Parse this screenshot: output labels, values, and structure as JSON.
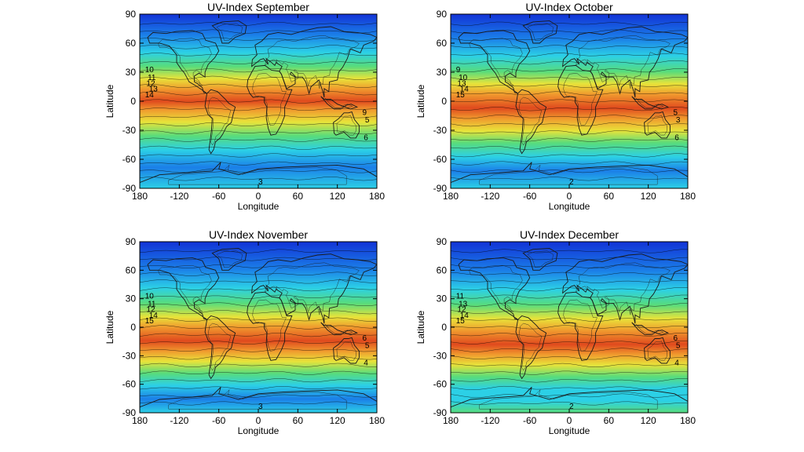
{
  "figure": {
    "title_prefix": "UV-Index",
    "xlabel": "Longitude",
    "ylabel": "Latitude",
    "x_ticks": [
      "180",
      "-120",
      "-60",
      "0",
      "60",
      "120",
      "180"
    ],
    "y_ticks": [
      "90",
      "60",
      "30",
      "0",
      "-30",
      "-60",
      "-90"
    ],
    "colors": {
      "blue_dark": "#1233d6",
      "blue": "#1b7fe8",
      "cyan": "#2cd0e6",
      "green": "#58dc7c",
      "yellow": "#e8e33a",
      "orange": "#f09a2e",
      "red": "#e04a1e",
      "land_line": "#1a1a1a"
    }
  },
  "panels": [
    {
      "month": "September",
      "contour_labels": [
        "12",
        "13",
        "14",
        "11",
        "10",
        "9",
        "5",
        "6",
        "3"
      ]
    },
    {
      "month": "October",
      "contour_labels": [
        "13",
        "14",
        "15",
        "10",
        "9",
        "5",
        "3",
        "6",
        "2"
      ]
    },
    {
      "month": "November",
      "contour_labels": [
        "12",
        "14",
        "15",
        "11",
        "10",
        "6",
        "5",
        "4",
        "3"
      ]
    },
    {
      "month": "December",
      "contour_labels": [
        "12",
        "14",
        "15",
        "13",
        "11",
        "6",
        "5",
        "4",
        "2"
      ]
    }
  ],
  "chart_data": [
    {
      "type": "heatmap",
      "title": "UV-Index September",
      "xlabel": "Longitude",
      "ylabel": "Latitude",
      "xlim": [
        -180,
        180
      ],
      "ylim": [
        -90,
        90
      ],
      "peak_band_latitude": [
        -5,
        15
      ]
    },
    {
      "type": "heatmap",
      "title": "UV-Index October",
      "xlabel": "Longitude",
      "ylabel": "Latitude",
      "xlim": [
        -180,
        180
      ],
      "ylim": [
        -90,
        90
      ],
      "peak_band_latitude": [
        -20,
        5
      ]
    },
    {
      "type": "heatmap",
      "title": "UV-Index November",
      "xlabel": "Longitude",
      "ylabel": "Latitude",
      "xlim": [
        -180,
        180
      ],
      "ylim": [
        -90,
        90
      ],
      "peak_band_latitude": [
        -30,
        -10
      ]
    },
    {
      "type": "heatmap",
      "title": "UV-Index December",
      "xlabel": "Longitude",
      "ylabel": "Latitude",
      "xlim": [
        -180,
        180
      ],
      "ylim": [
        -90,
        90
      ],
      "peak_band_latitude": [
        -35,
        -15
      ]
    }
  ]
}
